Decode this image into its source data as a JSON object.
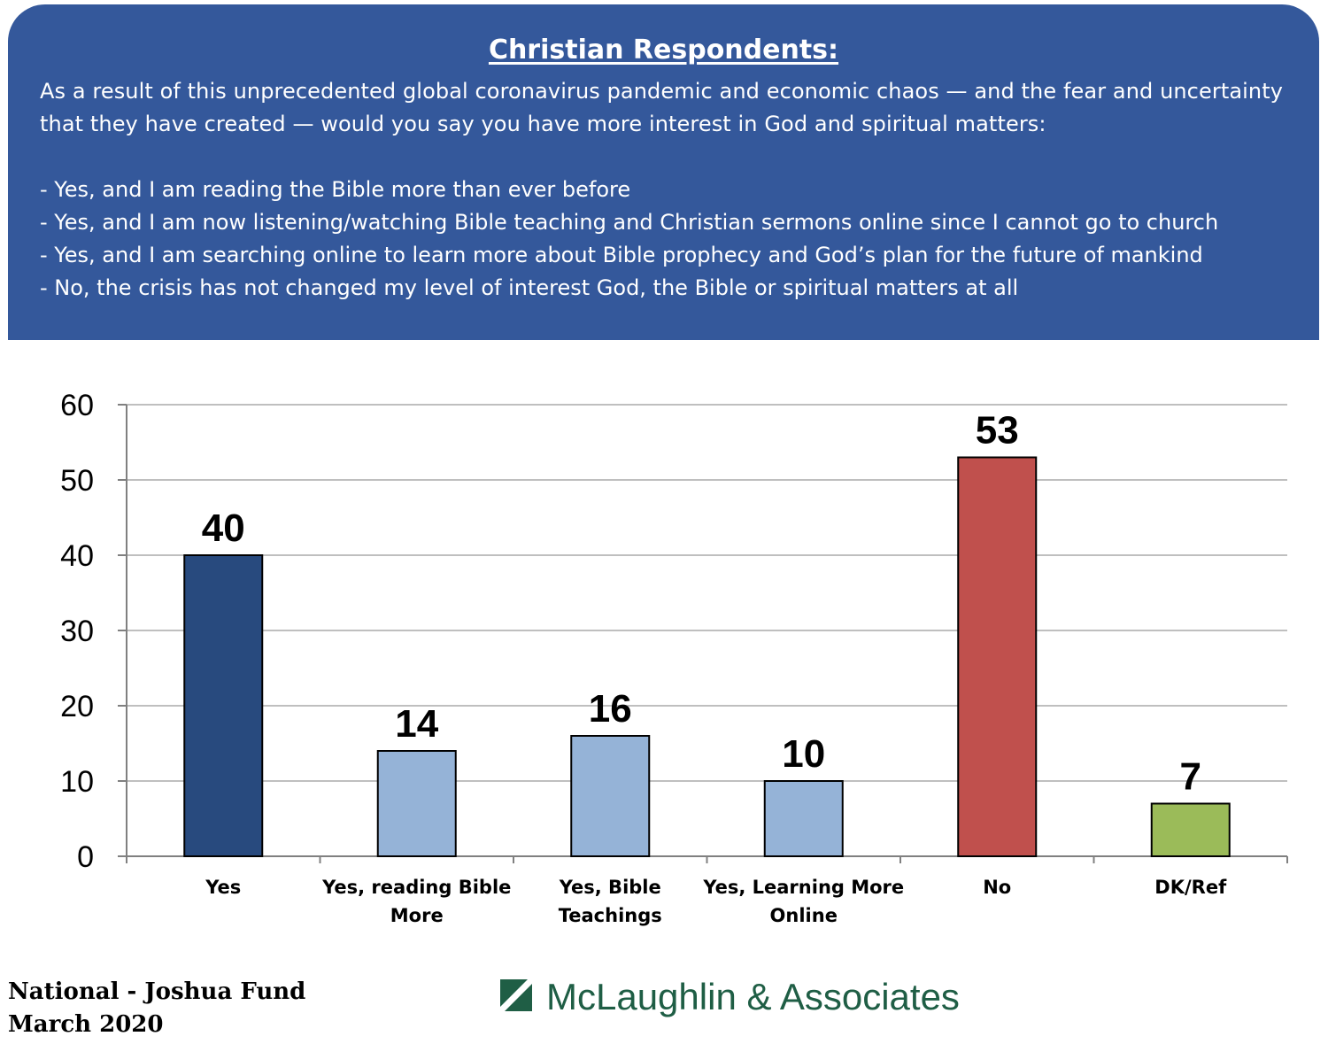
{
  "header": {
    "title": "Christian Respondents:",
    "question": "As a result of this unprecedented global coronavirus pandemic and economic chaos — and the fear and uncertainty that they have created — would you say you have more interest in God and spiritual matters:",
    "options": [
      "- Yes, and I am reading the Bible more than ever before",
      "- Yes, and I am now listening/watching Bible teaching and Christian sermons online since I cannot go to church",
      "- Yes, and I am searching online to learn more about Bible prophecy and God’s plan for the future of mankind",
      "- No, the crisis has not changed my level of interest God, the Bible or spiritual matters at all"
    ],
    "background_color": "#34589b"
  },
  "chart_data": {
    "type": "bar",
    "categories": [
      [
        "Yes"
      ],
      [
        "Yes, reading Bible",
        "More"
      ],
      [
        "Yes, Bible",
        "Teachings"
      ],
      [
        "Yes, Learning More",
        "Online"
      ],
      [
        "No"
      ],
      [
        "DK/Ref"
      ]
    ],
    "values": [
      40,
      14,
      16,
      10,
      53,
      7
    ],
    "bar_colors": [
      "#284a7e",
      "#95b3d7",
      "#95b3d7",
      "#95b3d7",
      "#c0504d",
      "#9bbb59"
    ],
    "ylim": [
      0,
      60
    ],
    "yticks": [
      0,
      10,
      20,
      30,
      40,
      50,
      60
    ],
    "grid": true,
    "data_labels": true,
    "xlabel": "",
    "ylabel": ""
  },
  "footer": {
    "source_line1": "National - Joshua Fund",
    "source_line2": "March 2020",
    "logo_text": "McLaughlin & Associates",
    "logo_color": "#1f5e45"
  }
}
